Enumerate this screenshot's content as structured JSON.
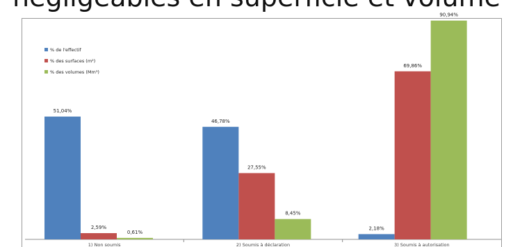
{
  "heading": "négligeables en superficie et volume",
  "chart_data": {
    "type": "bar",
    "title": "",
    "categories": [
      "1) Non soumis",
      "2) Soumis à déclaration",
      "3) Soumis à autorisation"
    ],
    "series": [
      {
        "name": "% de l'effectif",
        "color": "#4f81bd",
        "values": [
          51.04,
          46.78,
          2.18
        ],
        "labels": [
          "51,04%",
          "46,78%",
          "2,18%"
        ]
      },
      {
        "name": "% des surfaces (m²)",
        "color": "#c0504d",
        "values": [
          2.59,
          27.55,
          69.86
        ],
        "labels": [
          "2,59%",
          "27,55%",
          "69,86%"
        ]
      },
      {
        "name": "% des volumes (Mm³)",
        "color": "#9bbb59",
        "values": [
          0.61,
          8.45,
          90.94
        ],
        "labels": [
          "0,61%",
          "8,45%",
          "90,94%"
        ]
      }
    ],
    "ylim": [
      0,
      92
    ],
    "legend": "top-left",
    "grid": false
  }
}
